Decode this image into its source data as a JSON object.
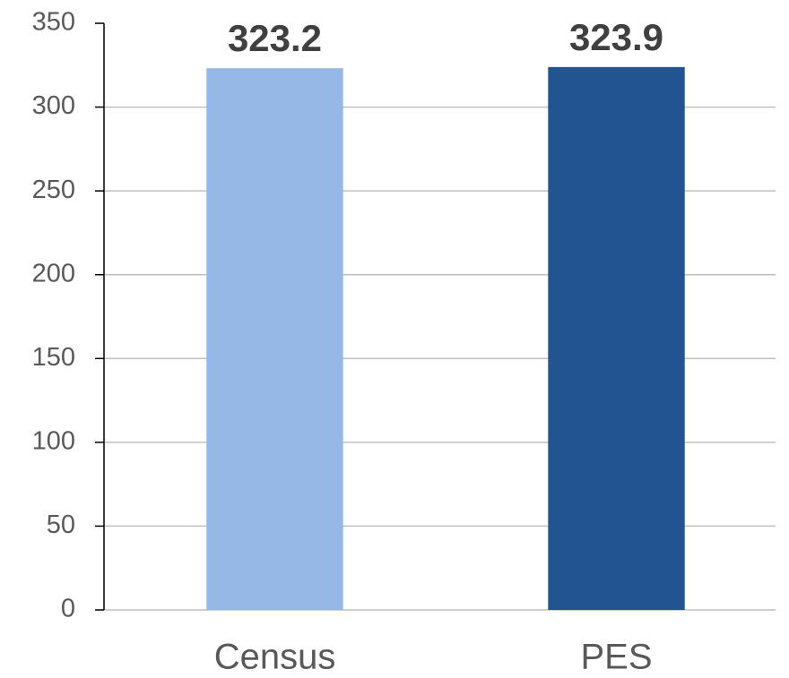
{
  "chart_data": {
    "type": "bar",
    "categories": [
      "Census",
      "PES"
    ],
    "values": [
      323.2,
      323.9
    ],
    "colors": [
      "#95b8e6",
      "#215491"
    ],
    "ylim": [
      0,
      350
    ],
    "yticks": [
      0,
      50,
      100,
      150,
      200,
      250,
      300,
      350
    ],
    "grid": true
  }
}
